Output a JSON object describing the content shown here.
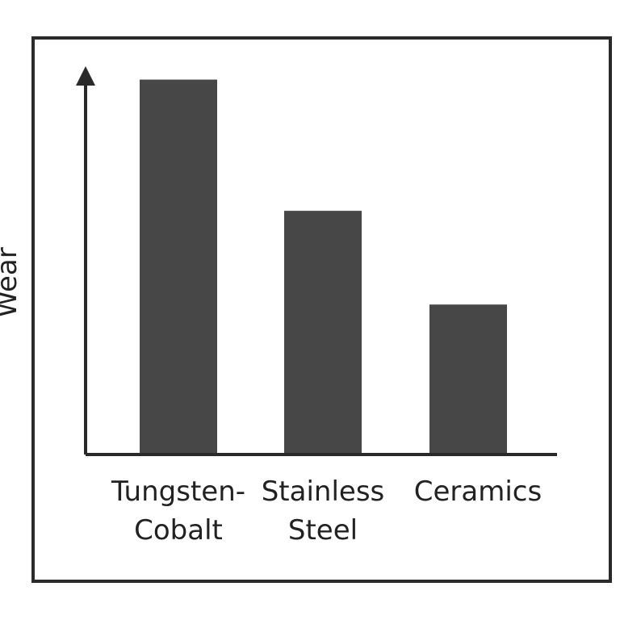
{
  "chart_data": {
    "type": "bar",
    "title": "",
    "xlabel": "",
    "ylabel": "Wear",
    "categories": [
      "Tungsten-Cobalt",
      "Stainless Steel",
      "Ceramics"
    ],
    "category_label_lines": [
      [
        "Tungsten-",
        "Cobalt"
      ],
      [
        "Stainless",
        "Steel"
      ],
      [
        "Ceramics"
      ]
    ],
    "values": [
      100,
      65,
      40
    ],
    "ylim": [
      0,
      118
    ],
    "grid": false,
    "legend": "none",
    "colors": {
      "bar": "#474747",
      "axis": "#2a2a2a",
      "frame": "#2a2a2a",
      "text": "#222222"
    }
  }
}
